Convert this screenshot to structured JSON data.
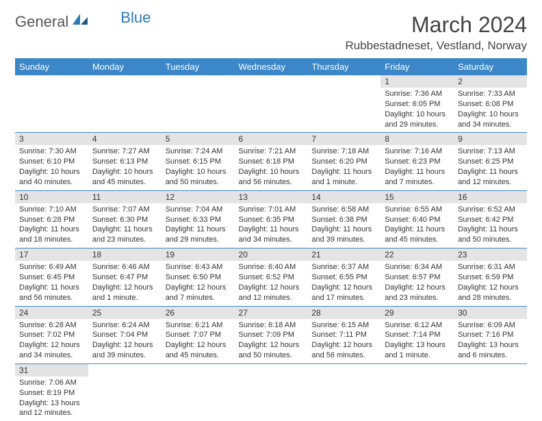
{
  "logo": {
    "part1": "General",
    "part2": "Blue"
  },
  "header": {
    "month_title": "March 2024",
    "location": "Rubbestadneset, Vestland, Norway"
  },
  "colors": {
    "accent": "#3b87c8",
    "daynum_bg": "#e4e4e4",
    "text": "#333333",
    "bg": "#ffffff"
  },
  "weekdays": [
    "Sunday",
    "Monday",
    "Tuesday",
    "Wednesday",
    "Thursday",
    "Friday",
    "Saturday"
  ],
  "weeks": [
    [
      {
        "n": "",
        "l1": "",
        "l2": "",
        "l3": "",
        "l4": ""
      },
      {
        "n": "",
        "l1": "",
        "l2": "",
        "l3": "",
        "l4": ""
      },
      {
        "n": "",
        "l1": "",
        "l2": "",
        "l3": "",
        "l4": ""
      },
      {
        "n": "",
        "l1": "",
        "l2": "",
        "l3": "",
        "l4": ""
      },
      {
        "n": "",
        "l1": "",
        "l2": "",
        "l3": "",
        "l4": ""
      },
      {
        "n": "1",
        "l1": "Sunrise: 7:36 AM",
        "l2": "Sunset: 6:05 PM",
        "l3": "Daylight: 10 hours",
        "l4": "and 29 minutes."
      },
      {
        "n": "2",
        "l1": "Sunrise: 7:33 AM",
        "l2": "Sunset: 6:08 PM",
        "l3": "Daylight: 10 hours",
        "l4": "and 34 minutes."
      }
    ],
    [
      {
        "n": "3",
        "l1": "Sunrise: 7:30 AM",
        "l2": "Sunset: 6:10 PM",
        "l3": "Daylight: 10 hours",
        "l4": "and 40 minutes."
      },
      {
        "n": "4",
        "l1": "Sunrise: 7:27 AM",
        "l2": "Sunset: 6:13 PM",
        "l3": "Daylight: 10 hours",
        "l4": "and 45 minutes."
      },
      {
        "n": "5",
        "l1": "Sunrise: 7:24 AM",
        "l2": "Sunset: 6:15 PM",
        "l3": "Daylight: 10 hours",
        "l4": "and 50 minutes."
      },
      {
        "n": "6",
        "l1": "Sunrise: 7:21 AM",
        "l2": "Sunset: 6:18 PM",
        "l3": "Daylight: 10 hours",
        "l4": "and 56 minutes."
      },
      {
        "n": "7",
        "l1": "Sunrise: 7:18 AM",
        "l2": "Sunset: 6:20 PM",
        "l3": "Daylight: 11 hours",
        "l4": "and 1 minute."
      },
      {
        "n": "8",
        "l1": "Sunrise: 7:16 AM",
        "l2": "Sunset: 6:23 PM",
        "l3": "Daylight: 11 hours",
        "l4": "and 7 minutes."
      },
      {
        "n": "9",
        "l1": "Sunrise: 7:13 AM",
        "l2": "Sunset: 6:25 PM",
        "l3": "Daylight: 11 hours",
        "l4": "and 12 minutes."
      }
    ],
    [
      {
        "n": "10",
        "l1": "Sunrise: 7:10 AM",
        "l2": "Sunset: 6:28 PM",
        "l3": "Daylight: 11 hours",
        "l4": "and 18 minutes."
      },
      {
        "n": "11",
        "l1": "Sunrise: 7:07 AM",
        "l2": "Sunset: 6:30 PM",
        "l3": "Daylight: 11 hours",
        "l4": "and 23 minutes."
      },
      {
        "n": "12",
        "l1": "Sunrise: 7:04 AM",
        "l2": "Sunset: 6:33 PM",
        "l3": "Daylight: 11 hours",
        "l4": "and 29 minutes."
      },
      {
        "n": "13",
        "l1": "Sunrise: 7:01 AM",
        "l2": "Sunset: 6:35 PM",
        "l3": "Daylight: 11 hours",
        "l4": "and 34 minutes."
      },
      {
        "n": "14",
        "l1": "Sunrise: 6:58 AM",
        "l2": "Sunset: 6:38 PM",
        "l3": "Daylight: 11 hours",
        "l4": "and 39 minutes."
      },
      {
        "n": "15",
        "l1": "Sunrise: 6:55 AM",
        "l2": "Sunset: 6:40 PM",
        "l3": "Daylight: 11 hours",
        "l4": "and 45 minutes."
      },
      {
        "n": "16",
        "l1": "Sunrise: 6:52 AM",
        "l2": "Sunset: 6:42 PM",
        "l3": "Daylight: 11 hours",
        "l4": "and 50 minutes."
      }
    ],
    [
      {
        "n": "17",
        "l1": "Sunrise: 6:49 AM",
        "l2": "Sunset: 6:45 PM",
        "l3": "Daylight: 11 hours",
        "l4": "and 56 minutes."
      },
      {
        "n": "18",
        "l1": "Sunrise: 6:46 AM",
        "l2": "Sunset: 6:47 PM",
        "l3": "Daylight: 12 hours",
        "l4": "and 1 minute."
      },
      {
        "n": "19",
        "l1": "Sunrise: 6:43 AM",
        "l2": "Sunset: 6:50 PM",
        "l3": "Daylight: 12 hours",
        "l4": "and 7 minutes."
      },
      {
        "n": "20",
        "l1": "Sunrise: 6:40 AM",
        "l2": "Sunset: 6:52 PM",
        "l3": "Daylight: 12 hours",
        "l4": "and 12 minutes."
      },
      {
        "n": "21",
        "l1": "Sunrise: 6:37 AM",
        "l2": "Sunset: 6:55 PM",
        "l3": "Daylight: 12 hours",
        "l4": "and 17 minutes."
      },
      {
        "n": "22",
        "l1": "Sunrise: 6:34 AM",
        "l2": "Sunset: 6:57 PM",
        "l3": "Daylight: 12 hours",
        "l4": "and 23 minutes."
      },
      {
        "n": "23",
        "l1": "Sunrise: 6:31 AM",
        "l2": "Sunset: 6:59 PM",
        "l3": "Daylight: 12 hours",
        "l4": "and 28 minutes."
      }
    ],
    [
      {
        "n": "24",
        "l1": "Sunrise: 6:28 AM",
        "l2": "Sunset: 7:02 PM",
        "l3": "Daylight: 12 hours",
        "l4": "and 34 minutes."
      },
      {
        "n": "25",
        "l1": "Sunrise: 6:24 AM",
        "l2": "Sunset: 7:04 PM",
        "l3": "Daylight: 12 hours",
        "l4": "and 39 minutes."
      },
      {
        "n": "26",
        "l1": "Sunrise: 6:21 AM",
        "l2": "Sunset: 7:07 PM",
        "l3": "Daylight: 12 hours",
        "l4": "and 45 minutes."
      },
      {
        "n": "27",
        "l1": "Sunrise: 6:18 AM",
        "l2": "Sunset: 7:09 PM",
        "l3": "Daylight: 12 hours",
        "l4": "and 50 minutes."
      },
      {
        "n": "28",
        "l1": "Sunrise: 6:15 AM",
        "l2": "Sunset: 7:11 PM",
        "l3": "Daylight: 12 hours",
        "l4": "and 56 minutes."
      },
      {
        "n": "29",
        "l1": "Sunrise: 6:12 AM",
        "l2": "Sunset: 7:14 PM",
        "l3": "Daylight: 13 hours",
        "l4": "and 1 minute."
      },
      {
        "n": "30",
        "l1": "Sunrise: 6:09 AM",
        "l2": "Sunset: 7:16 PM",
        "l3": "Daylight: 13 hours",
        "l4": "and 6 minutes."
      }
    ],
    [
      {
        "n": "31",
        "l1": "Sunrise: 7:06 AM",
        "l2": "Sunset: 8:19 PM",
        "l3": "Daylight: 13 hours",
        "l4": "and 12 minutes."
      },
      {
        "n": "",
        "l1": "",
        "l2": "",
        "l3": "",
        "l4": ""
      },
      {
        "n": "",
        "l1": "",
        "l2": "",
        "l3": "",
        "l4": ""
      },
      {
        "n": "",
        "l1": "",
        "l2": "",
        "l3": "",
        "l4": ""
      },
      {
        "n": "",
        "l1": "",
        "l2": "",
        "l3": "",
        "l4": ""
      },
      {
        "n": "",
        "l1": "",
        "l2": "",
        "l3": "",
        "l4": ""
      },
      {
        "n": "",
        "l1": "",
        "l2": "",
        "l3": "",
        "l4": ""
      }
    ]
  ]
}
